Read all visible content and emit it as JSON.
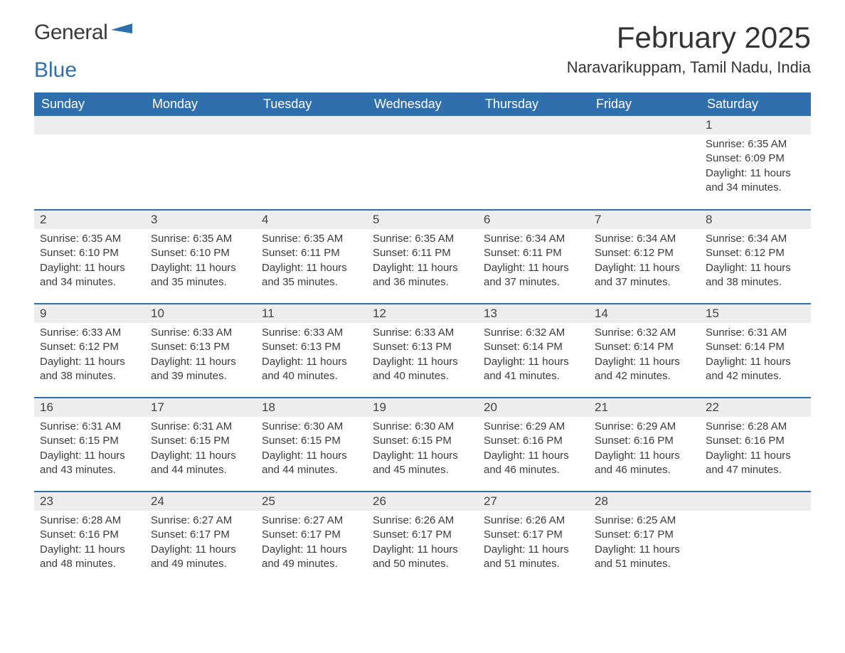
{
  "logo": {
    "text1": "General",
    "text2": "Blue",
    "mark_color": "#2f6fae"
  },
  "title": "February 2025",
  "location": "Naravarikuppam, Tamil Nadu, India",
  "colors": {
    "header_bg": "#2f6fae",
    "header_text": "#ffffff",
    "daynum_bg": "#ededed",
    "row_border": "#2f6fae",
    "body_text": "#3a3a3a",
    "page_bg": "#ffffff"
  },
  "day_headers": [
    "Sunday",
    "Monday",
    "Tuesday",
    "Wednesday",
    "Thursday",
    "Friday",
    "Saturday"
  ],
  "weeks": [
    [
      null,
      null,
      null,
      null,
      null,
      null,
      {
        "n": "1",
        "sunrise": "6:35 AM",
        "sunset": "6:09 PM",
        "daylight": "11 hours and 34 minutes."
      }
    ],
    [
      {
        "n": "2",
        "sunrise": "6:35 AM",
        "sunset": "6:10 PM",
        "daylight": "11 hours and 34 minutes."
      },
      {
        "n": "3",
        "sunrise": "6:35 AM",
        "sunset": "6:10 PM",
        "daylight": "11 hours and 35 minutes."
      },
      {
        "n": "4",
        "sunrise": "6:35 AM",
        "sunset": "6:11 PM",
        "daylight": "11 hours and 35 minutes."
      },
      {
        "n": "5",
        "sunrise": "6:35 AM",
        "sunset": "6:11 PM",
        "daylight": "11 hours and 36 minutes."
      },
      {
        "n": "6",
        "sunrise": "6:34 AM",
        "sunset": "6:11 PM",
        "daylight": "11 hours and 37 minutes."
      },
      {
        "n": "7",
        "sunrise": "6:34 AM",
        "sunset": "6:12 PM",
        "daylight": "11 hours and 37 minutes."
      },
      {
        "n": "8",
        "sunrise": "6:34 AM",
        "sunset": "6:12 PM",
        "daylight": "11 hours and 38 minutes."
      }
    ],
    [
      {
        "n": "9",
        "sunrise": "6:33 AM",
        "sunset": "6:12 PM",
        "daylight": "11 hours and 38 minutes."
      },
      {
        "n": "10",
        "sunrise": "6:33 AM",
        "sunset": "6:13 PM",
        "daylight": "11 hours and 39 minutes."
      },
      {
        "n": "11",
        "sunrise": "6:33 AM",
        "sunset": "6:13 PM",
        "daylight": "11 hours and 40 minutes."
      },
      {
        "n": "12",
        "sunrise": "6:33 AM",
        "sunset": "6:13 PM",
        "daylight": "11 hours and 40 minutes."
      },
      {
        "n": "13",
        "sunrise": "6:32 AM",
        "sunset": "6:14 PM",
        "daylight": "11 hours and 41 minutes."
      },
      {
        "n": "14",
        "sunrise": "6:32 AM",
        "sunset": "6:14 PM",
        "daylight": "11 hours and 42 minutes."
      },
      {
        "n": "15",
        "sunrise": "6:31 AM",
        "sunset": "6:14 PM",
        "daylight": "11 hours and 42 minutes."
      }
    ],
    [
      {
        "n": "16",
        "sunrise": "6:31 AM",
        "sunset": "6:15 PM",
        "daylight": "11 hours and 43 minutes."
      },
      {
        "n": "17",
        "sunrise": "6:31 AM",
        "sunset": "6:15 PM",
        "daylight": "11 hours and 44 minutes."
      },
      {
        "n": "18",
        "sunrise": "6:30 AM",
        "sunset": "6:15 PM",
        "daylight": "11 hours and 44 minutes."
      },
      {
        "n": "19",
        "sunrise": "6:30 AM",
        "sunset": "6:15 PM",
        "daylight": "11 hours and 45 minutes."
      },
      {
        "n": "20",
        "sunrise": "6:29 AM",
        "sunset": "6:16 PM",
        "daylight": "11 hours and 46 minutes."
      },
      {
        "n": "21",
        "sunrise": "6:29 AM",
        "sunset": "6:16 PM",
        "daylight": "11 hours and 46 minutes."
      },
      {
        "n": "22",
        "sunrise": "6:28 AM",
        "sunset": "6:16 PM",
        "daylight": "11 hours and 47 minutes."
      }
    ],
    [
      {
        "n": "23",
        "sunrise": "6:28 AM",
        "sunset": "6:16 PM",
        "daylight": "11 hours and 48 minutes."
      },
      {
        "n": "24",
        "sunrise": "6:27 AM",
        "sunset": "6:17 PM",
        "daylight": "11 hours and 49 minutes."
      },
      {
        "n": "25",
        "sunrise": "6:27 AM",
        "sunset": "6:17 PM",
        "daylight": "11 hours and 49 minutes."
      },
      {
        "n": "26",
        "sunrise": "6:26 AM",
        "sunset": "6:17 PM",
        "daylight": "11 hours and 50 minutes."
      },
      {
        "n": "27",
        "sunrise": "6:26 AM",
        "sunset": "6:17 PM",
        "daylight": "11 hours and 51 minutes."
      },
      {
        "n": "28",
        "sunrise": "6:25 AM",
        "sunset": "6:17 PM",
        "daylight": "11 hours and 51 minutes."
      },
      null
    ]
  ],
  "labels": {
    "sunrise": "Sunrise: ",
    "sunset": "Sunset: ",
    "daylight": "Daylight: "
  }
}
